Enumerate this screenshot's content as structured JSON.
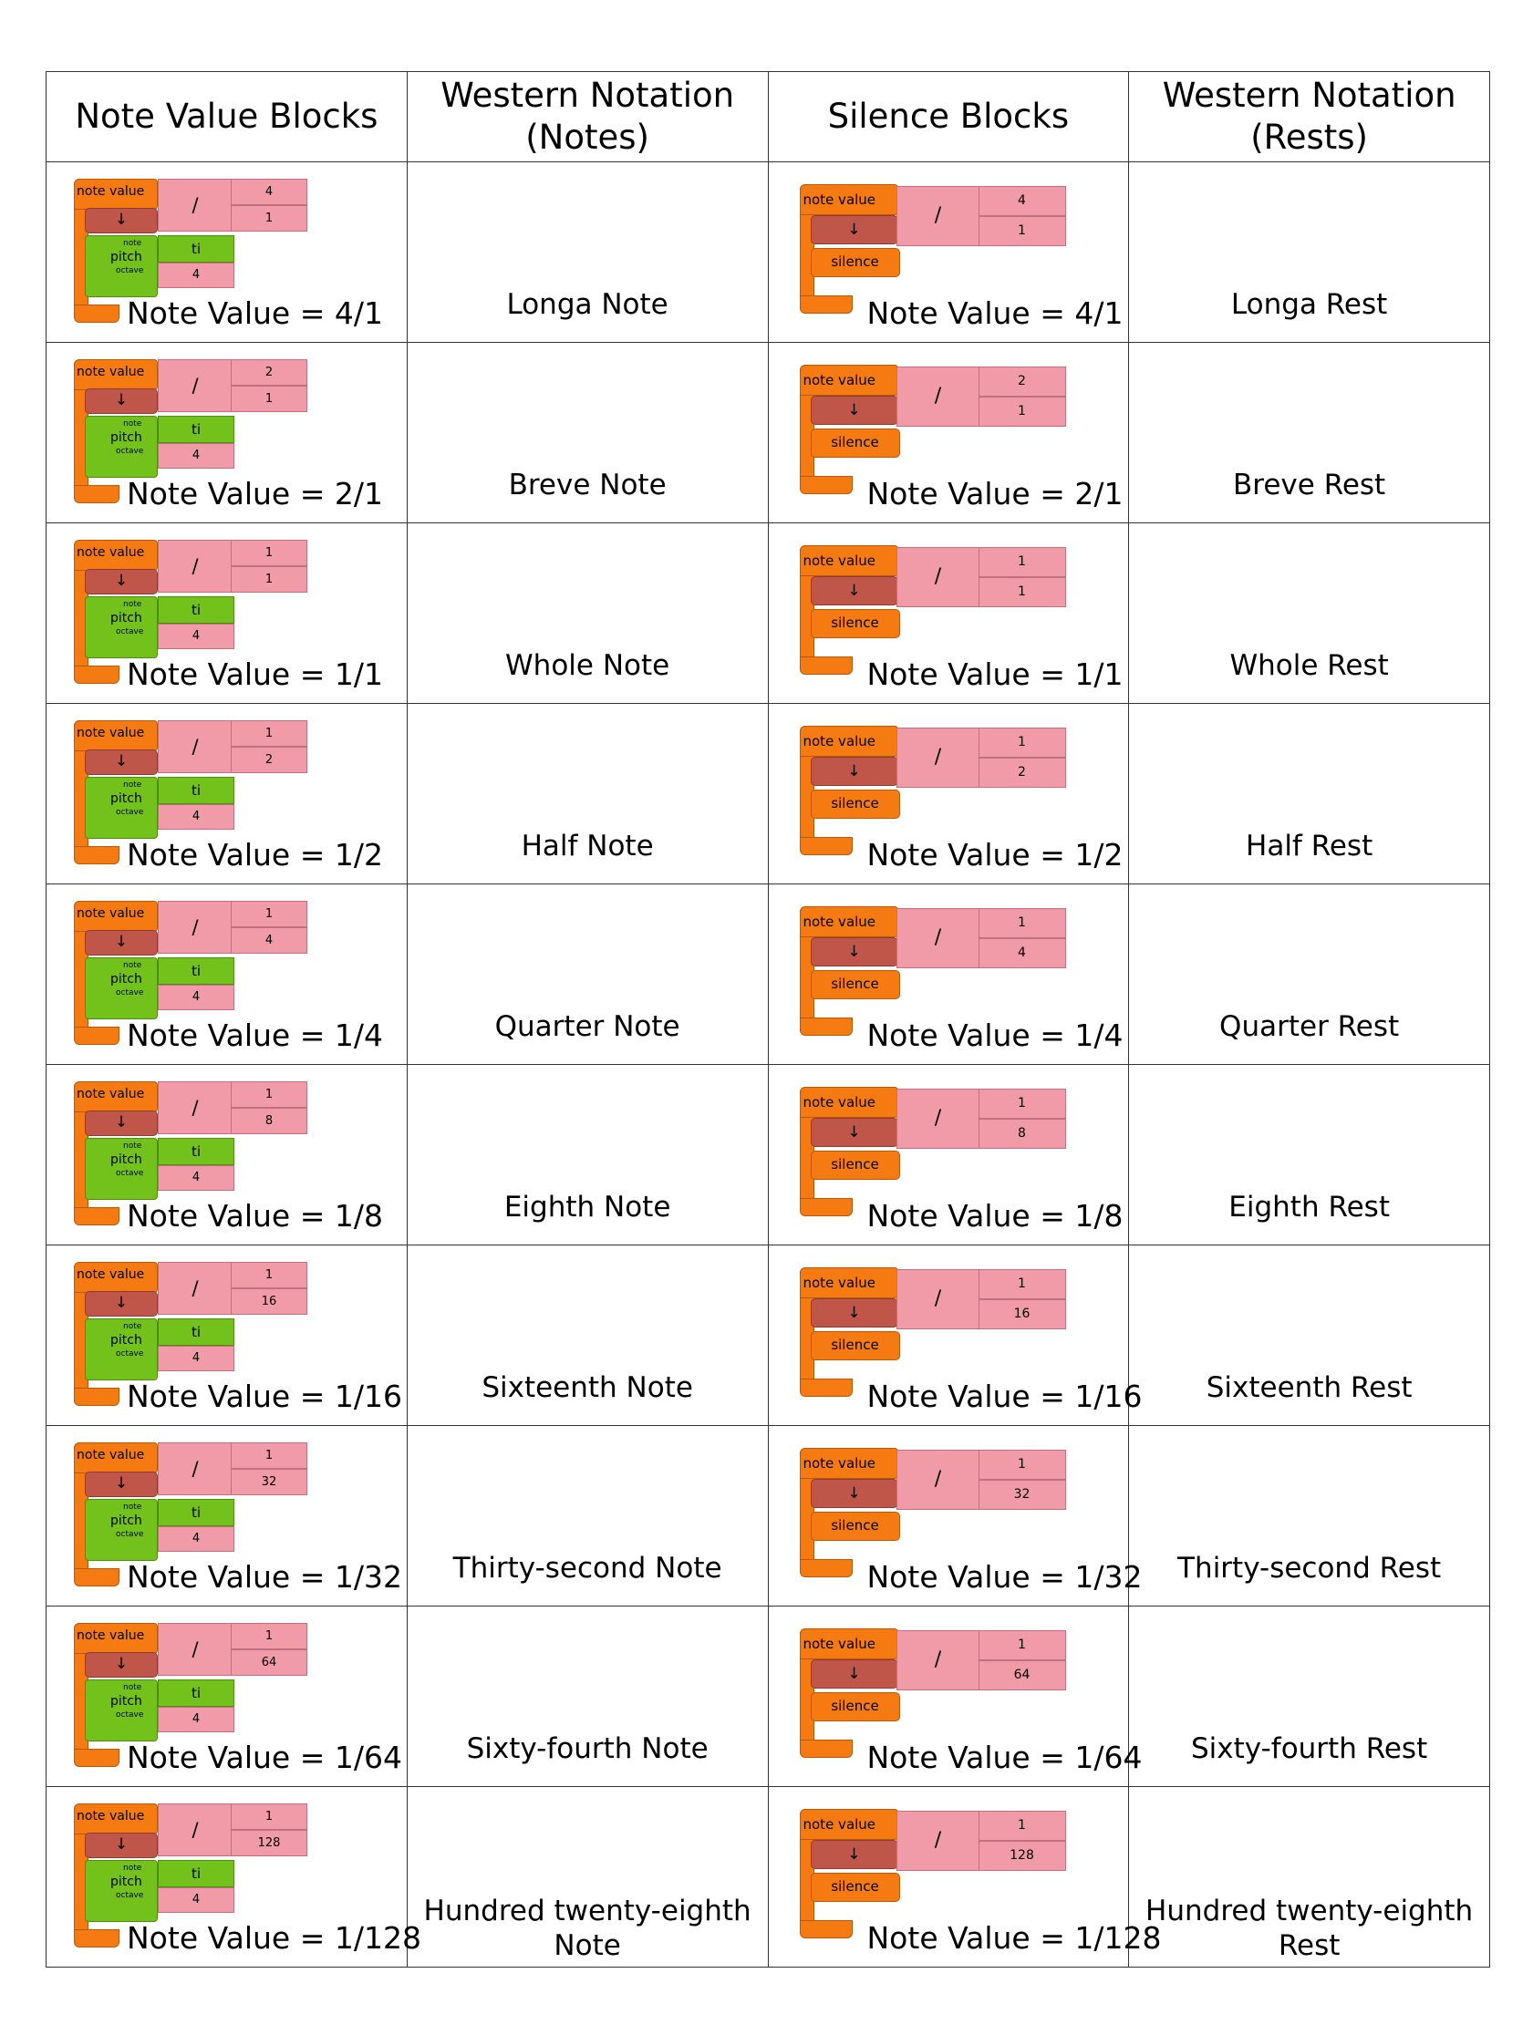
{
  "headers": [
    "Note Value Blocks",
    "Western Notation\n(Notes)",
    "Silence Blocks",
    "Western Notation\n(Rests)"
  ],
  "block_text": {
    "note_value": "note value",
    "arrow": "↓",
    "divide": "/",
    "note_small": "note",
    "pitch": "pitch",
    "octave": "octave",
    "pitch_name": "ti",
    "octave_value": "4",
    "silence": "silence"
  },
  "rows": [
    {
      "num": "4",
      "den": "1",
      "label": "Note Value = 4/1",
      "note_name": "Longa Note",
      "rest_name": "Longa Rest"
    },
    {
      "num": "2",
      "den": "1",
      "label": "Note Value = 2/1",
      "note_name": "Breve Note",
      "rest_name": "Breve Rest"
    },
    {
      "num": "1",
      "den": "1",
      "label": "Note Value = 1/1",
      "note_name": "Whole Note",
      "rest_name": "Whole Rest"
    },
    {
      "num": "1",
      "den": "2",
      "label": "Note Value = 1/2",
      "note_name": "Half Note",
      "rest_name": "Half Rest"
    },
    {
      "num": "1",
      "den": "4",
      "label": "Note Value = 1/4",
      "note_name": "Quarter Note",
      "rest_name": "Quarter Rest"
    },
    {
      "num": "1",
      "den": "8",
      "label": "Note Value = 1/8",
      "note_name": "Eighth Note",
      "rest_name": "Eighth Rest"
    },
    {
      "num": "1",
      "den": "16",
      "label": "Note Value = 1/16",
      "note_name": "Sixteenth Note",
      "rest_name": "Sixteenth Rest"
    },
    {
      "num": "1",
      "den": "32",
      "label": "Note Value = 1/32",
      "note_name": "Thirty-second Note",
      "rest_name": "Thirty-second Rest"
    },
    {
      "num": "1",
      "den": "64",
      "label": "Note Value = 1/64",
      "note_name": "Sixty-fourth Note",
      "rest_name": "Sixty-fourth Rest"
    },
    {
      "num": "1",
      "den": "128",
      "label": "Note Value = 1/128",
      "note_name": "Hundred twenty-eighth\nNote",
      "rest_name": "Hundred twenty-eighth\nRest"
    }
  ],
  "colors": {
    "orange": "#f57a12",
    "dark_red": "#c0564a",
    "green": "#73c21c",
    "pink": "#f09ba7"
  }
}
